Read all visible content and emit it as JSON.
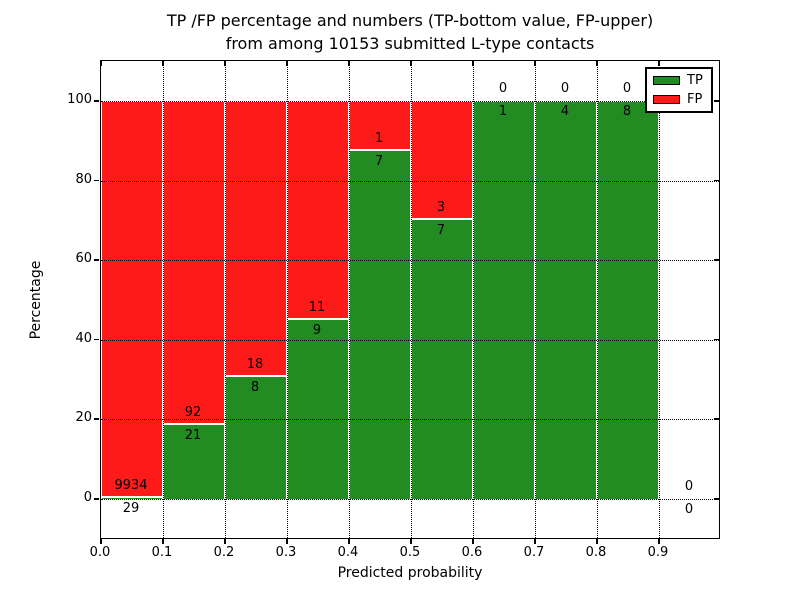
{
  "title": {
    "line1": "TP /FP percentage and numbers (TP-bottom value, FP-upper)",
    "line2": "from among 10153 submitted L-type contacts"
  },
  "axes": {
    "xlabel": "Predicted probability",
    "ylabel": "Percentage",
    "x_tick_labels": [
      "0.0",
      "0.1",
      "0.2",
      "0.3",
      "0.4",
      "0.5",
      "0.6",
      "0.7",
      "0.8",
      "0.9"
    ],
    "y_tick_labels": [
      "0",
      "20",
      "40",
      "60",
      "80",
      "100"
    ],
    "y_tick_values": [
      0,
      20,
      40,
      60,
      80,
      100
    ]
  },
  "legend": {
    "tp_label": "TP",
    "fp_label": "FP"
  },
  "colors": {
    "tp": "#228b22",
    "fp": "#ff1a1a",
    "grid": "#000000",
    "background": "#ffffff"
  },
  "chart_data": {
    "type": "bar",
    "stacked": true,
    "normalized_to_percent": true,
    "title": "TP /FP percentage and numbers (TP-bottom value, FP-upper)\nfrom among 10153 submitted L-type contacts",
    "xlabel": "Predicted probability",
    "ylabel": "Percentage",
    "total_contacts": 10153,
    "xlim": [
      0.0,
      1.0
    ],
    "ylim": [
      -10,
      110
    ],
    "grid": "dotted both axes",
    "legend_position": "upper right",
    "bin_width": 0.1,
    "categories": [
      "0.0-0.1",
      "0.1-0.2",
      "0.2-0.3",
      "0.3-0.4",
      "0.4-0.5",
      "0.5-0.6",
      "0.6-0.7",
      "0.7-0.8",
      "0.8-0.9",
      "0.9-1.0"
    ],
    "series": [
      {
        "name": "TP",
        "color": "#228b22",
        "counts": [
          29,
          21,
          8,
          9,
          7,
          7,
          1,
          4,
          8,
          0
        ]
      },
      {
        "name": "FP",
        "color": "#ff1a1a",
        "counts": [
          9934,
          92,
          18,
          11,
          1,
          3,
          0,
          0,
          0,
          0
        ]
      }
    ],
    "tp_percent": [
      0.29,
      18.58,
      30.77,
      45.0,
      87.5,
      70.0,
      100,
      100,
      100,
      null
    ],
    "bar_drawn": [
      true,
      true,
      true,
      true,
      true,
      true,
      true,
      true,
      true,
      false
    ]
  }
}
